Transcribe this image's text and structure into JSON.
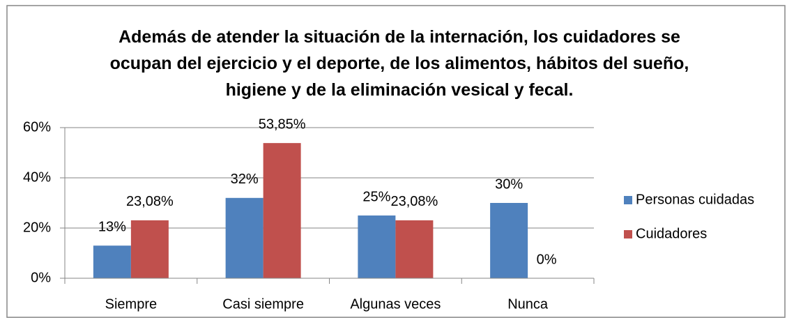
{
  "chart_data": {
    "type": "bar",
    "title": "Además de atender la situación de la internación, los cuidadores se ocupan del ejercicio y el deporte, de los alimentos, hábitos del sueño, higiene y de la eliminación vesical y fecal.",
    "categories": [
      "Siempre",
      "Casi siempre",
      "Algunas veces",
      "Nunca"
    ],
    "series": [
      {
        "name": "Personas cuidadas",
        "color": "#4f81bd",
        "values": [
          13,
          32,
          25,
          30
        ],
        "value_labels": [
          "13%",
          "32%",
          "25%",
          "30%"
        ]
      },
      {
        "name": "Cuidadores",
        "color": "#c0504d",
        "values": [
          23.08,
          53.85,
          23.08,
          0
        ],
        "value_labels": [
          "23,08%",
          "53,85%",
          "23,08%",
          "0%"
        ]
      }
    ],
    "ylim": [
      0,
      60
    ],
    "yticks": [
      {
        "value": 0,
        "label": "0%"
      },
      {
        "value": 20,
        "label": "20%"
      },
      {
        "value": 40,
        "label": "40%"
      },
      {
        "value": 60,
        "label": "60%"
      }
    ],
    "grid": true,
    "legend": "right"
  }
}
